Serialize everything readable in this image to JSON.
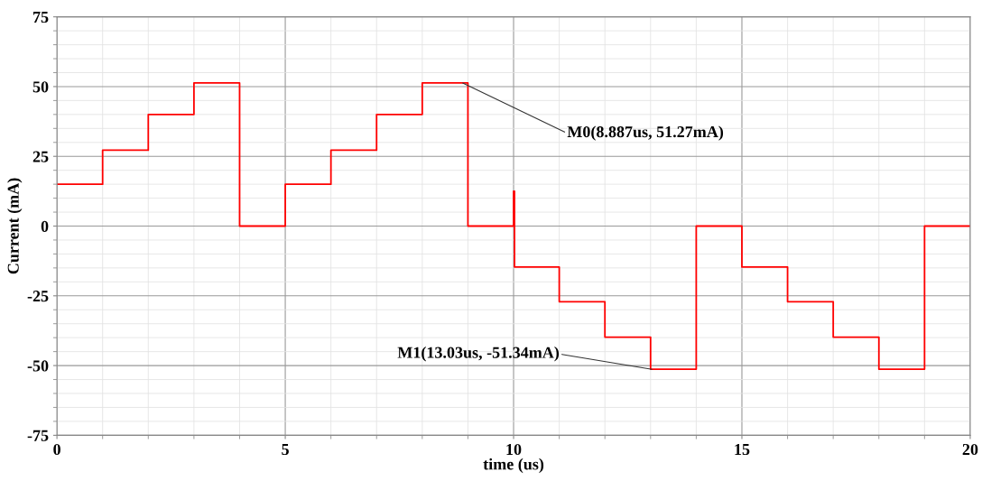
{
  "chart_data": {
    "type": "step",
    "xlabel": "time (us)",
    "ylabel": "Current (mA)",
    "xlim": [
      0,
      20
    ],
    "ylim": [
      -75,
      75
    ],
    "xticks": [
      0,
      5,
      10,
      15,
      20
    ],
    "yticks": [
      -75,
      -50,
      -25,
      0,
      25,
      50,
      75
    ],
    "grid": true,
    "legend": false,
    "marker": "none",
    "line_style": "solid",
    "series": [
      {
        "color": "#ff0000",
        "x": [
          0,
          1,
          2,
          3,
          4,
          5,
          6,
          7,
          8,
          9,
          10,
          10.02,
          11,
          12,
          13,
          14,
          15,
          16,
          17,
          18,
          19,
          20
        ],
        "values": [
          15,
          27.2,
          40,
          51.3,
          0,
          15,
          27.2,
          40,
          51.3,
          0,
          12.5,
          -14.7,
          -27.1,
          -39.8,
          -51.3,
          0,
          -14.7,
          -27.1,
          -39.8,
          -51.3,
          0,
          0
        ]
      }
    ],
    "annotations": [
      {
        "text": "M0(8.887us, 51.27mA)",
        "x": 8.887,
        "y": 51.27
      },
      {
        "text": "M1(13.03us, -51.34mA)",
        "x": 13.03,
        "y": -51.34
      }
    ]
  }
}
